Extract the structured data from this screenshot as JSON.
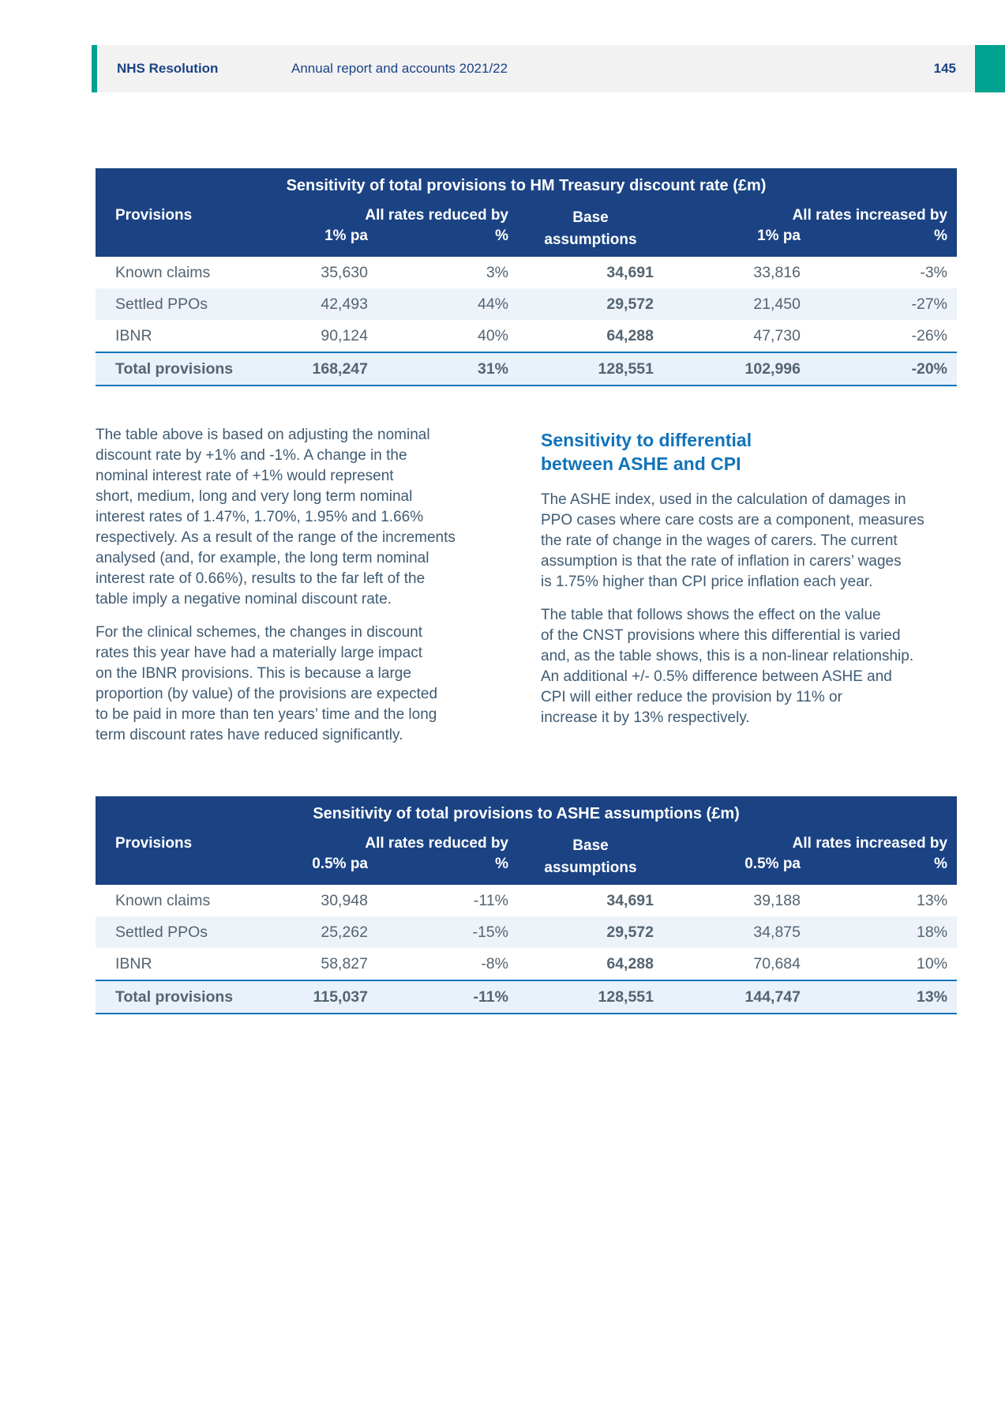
{
  "header": {
    "brand": "NHS Resolution",
    "doc_title": "Annual report and accounts 2021/22",
    "page_number": "145"
  },
  "colors": {
    "navy_header": "#1b4384",
    "accent_teal": "#00a290",
    "highlight_blue": "#1173b9",
    "body_text": "#3f5b73",
    "alt_row": "#eef3fa",
    "band_gray": "#f2f2f3"
  },
  "table_hm": {
    "title": "Sensitivity of total provisions to HM Treasury discount rate (£m)",
    "col_provisions": "Provisions",
    "col_reduced": "All rates reduced by",
    "col_base": "Base\nassumptions",
    "col_increased": "All rates increased by",
    "sub_rate": "1% pa",
    "sub_pct": "%",
    "sub_rate2": "1% pa",
    "sub_pct2": "%",
    "rows": [
      {
        "label": "Known claims",
        "reduced": "35,630",
        "reduced_pct": "3%",
        "base": "34,691",
        "increased": "33,816",
        "increased_pct": "-3%"
      },
      {
        "label": "Settled PPOs",
        "reduced": "42,493",
        "reduced_pct": "44%",
        "base": "29,572",
        "increased": "21,450",
        "increased_pct": "-27%"
      },
      {
        "label": "IBNR",
        "reduced": "90,124",
        "reduced_pct": "40%",
        "base": "64,288",
        "increased": "47,730",
        "increased_pct": "-26%"
      }
    ],
    "total": {
      "label": "Total provisions",
      "reduced": "168,247",
      "reduced_pct": "31%",
      "base": "128,551",
      "increased": "102,996",
      "increased_pct": "-20%"
    }
  },
  "table_ashe": {
    "title": "Sensitivity of total provisions to ASHE assumptions (£m)",
    "col_provisions": "Provisions",
    "col_reduced": "All rates reduced by",
    "col_base": "Base\nassumptions",
    "col_increased": "All rates increased by",
    "sub_rate": "0.5% pa",
    "sub_pct": "%",
    "sub_rate2": "0.5% pa",
    "sub_pct2": "%",
    "rows": [
      {
        "label": "Known claims",
        "reduced": "30,948",
        "reduced_pct": "-11%",
        "base": "34,691",
        "increased": "39,188",
        "increased_pct": "13%"
      },
      {
        "label": "Settled PPOs",
        "reduced": "25,262",
        "reduced_pct": "-15%",
        "base": "29,572",
        "increased": "34,875",
        "increased_pct": "18%"
      },
      {
        "label": "IBNR",
        "reduced": "58,827",
        "reduced_pct": "-8%",
        "base": "64,288",
        "increased": "70,684",
        "increased_pct": "10%"
      }
    ],
    "total": {
      "label": "Total provisions",
      "reduced": "115,037",
      "reduced_pct": "-11%",
      "base": "128,551",
      "increased": "144,747",
      "increased_pct": "13%"
    }
  },
  "body_left": {
    "p1": "The table above is based on adjusting the nominal\ndiscount rate by +1% and -1%. A change in the\nnominal interest rate of +1% would represent\nshort, medium, long and very long term nominal\ninterest rates of 1.47%, 1.70%, 1.95% and 1.66%\nrespectively. As a result of the range of the increments\nanalysed (and, for example, the long term nominal\ninterest rate of 0.66%), results to the far left of the\ntable imply a negative nominal discount rate.",
    "p2": "For the clinical schemes, the changes in discount\nrates this year have had a materially large impact\non the IBNR provisions. This is because a large\nproportion (by value) of the provisions are expected\nto be paid in more than ten years’ time and the long\nterm discount rates have reduced significantly."
  },
  "body_right": {
    "heading": "Sensitivity to differential\nbetween ASHE and CPI",
    "p1": "The ASHE index, used in the calculation of damages in\nPPO cases where care costs are a component, measures\nthe rate of change in the wages of carers. The current\nassumption is that the rate of inflation in carers’ wages\nis 1.75% higher than CPI price inflation each year.",
    "p2": "The table that follows shows the effect on the value\nof the CNST provisions where this differential is varied\nand, as the table shows, this is a non-linear relationship.\nAn additional +/- 0.5% difference between ASHE and\nCPI will either reduce the provision by 11% or\nincrease it by 13% respectively."
  }
}
